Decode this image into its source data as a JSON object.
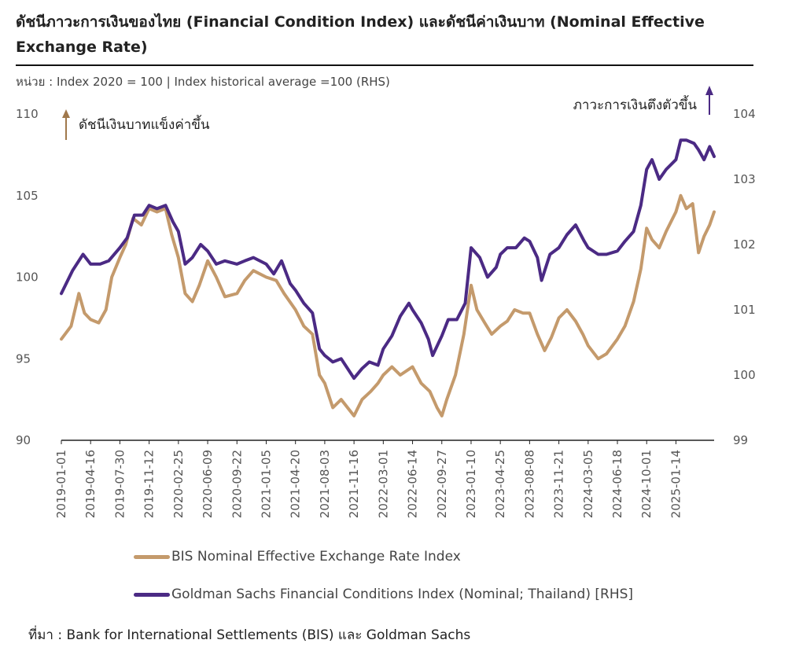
{
  "header": {
    "title": "ดัชนีภาวะการเงินของไทย (Financial Condition Index) และดัชนีค่าเงินบาท (Nominal Effective Exchange Rate)",
    "unit_note": "หน่วย : Index 2020 = 100 | Index historical average =100 (RHS)"
  },
  "annotations": {
    "left": "ดัชนีเงินบาทแข็งค่าขึ้น",
    "right": "ภาวะการเงินตึงตัวขึ้น"
  },
  "source": "ที่มา : Bank for International Settlements (BIS) และ Goldman Sachs",
  "colors": {
    "bis": "#C49A6C",
    "gs": "#4B2A84",
    "axis": "#222222",
    "arrow_left": "#A0784C",
    "arrow_right": "#4B2A84"
  },
  "chart_data": {
    "type": "line",
    "x_ticks": [
      "2019-01-01",
      "2019-04-16",
      "2019-07-30",
      "2019-11-12",
      "2020-02-25",
      "2020-06-09",
      "2020-09-22",
      "2021-01-05",
      "2021-04-20",
      "2021-08-03",
      "2021-11-16",
      "2022-03-01",
      "2022-06-14",
      "2022-09-27",
      "2023-01-10",
      "2023-04-25",
      "2023-08-08",
      "2023-11-21",
      "2024-03-05",
      "2024-06-18",
      "2024-10-01",
      "2025-01-14"
    ],
    "x_range": [
      "2019-01-01",
      "2025-05-31"
    ],
    "y_left": {
      "range": [
        90,
        110
      ],
      "ticks": [
        "90",
        "95",
        "100",
        "105",
        "110"
      ]
    },
    "y_right": {
      "range": [
        99,
        104
      ],
      "ticks": [
        "99",
        "100",
        "101",
        "102",
        "103",
        "104"
      ]
    },
    "series": [
      {
        "name": "BIS Nominal Effective Exchange Rate Index",
        "axis": "left",
        "points": [
          [
            "2019-01-01",
            96.2
          ],
          [
            "2019-02-05",
            97.0
          ],
          [
            "2019-03-05",
            99.0
          ],
          [
            "2019-03-25",
            97.8
          ],
          [
            "2019-04-16",
            97.4
          ],
          [
            "2019-05-15",
            97.2
          ],
          [
            "2019-06-10",
            98.0
          ],
          [
            "2019-07-01",
            100.0
          ],
          [
            "2019-07-30",
            101.2
          ],
          [
            "2019-08-20",
            102.0
          ],
          [
            "2019-09-15",
            103.6
          ],
          [
            "2019-10-15",
            103.2
          ],
          [
            "2019-11-12",
            104.2
          ],
          [
            "2019-12-10",
            104.0
          ],
          [
            "2020-01-10",
            104.2
          ],
          [
            "2020-02-01",
            102.6
          ],
          [
            "2020-02-25",
            101.2
          ],
          [
            "2020-03-20",
            99.0
          ],
          [
            "2020-04-15",
            98.5
          ],
          [
            "2020-05-10",
            99.5
          ],
          [
            "2020-06-09",
            101.0
          ],
          [
            "2020-07-10",
            100.0
          ],
          [
            "2020-08-10",
            98.8
          ],
          [
            "2020-09-22",
            99.0
          ],
          [
            "2020-10-20",
            99.8
          ],
          [
            "2020-11-20",
            100.4
          ],
          [
            "2021-01-05",
            100.0
          ],
          [
            "2021-02-10",
            99.8
          ],
          [
            "2021-03-10",
            99.0
          ],
          [
            "2021-04-20",
            98.0
          ],
          [
            "2021-05-20",
            97.0
          ],
          [
            "2021-06-20",
            96.5
          ],
          [
            "2021-07-15",
            94.0
          ],
          [
            "2021-08-03",
            93.5
          ],
          [
            "2021-09-01",
            92.0
          ],
          [
            "2021-10-01",
            92.5
          ],
          [
            "2021-11-16",
            91.5
          ],
          [
            "2021-12-15",
            92.5
          ],
          [
            "2022-01-15",
            93.0
          ],
          [
            "2022-02-10",
            93.5
          ],
          [
            "2022-03-01",
            94.0
          ],
          [
            "2022-04-01",
            94.5
          ],
          [
            "2022-05-01",
            94.0
          ],
          [
            "2022-06-14",
            94.5
          ],
          [
            "2022-07-15",
            93.5
          ],
          [
            "2022-08-15",
            93.0
          ],
          [
            "2022-09-10",
            92.0
          ],
          [
            "2022-09-27",
            91.5
          ],
          [
            "2022-10-15",
            92.5
          ],
          [
            "2022-11-15",
            94.0
          ],
          [
            "2022-12-15",
            96.5
          ],
          [
            "2023-01-10",
            99.5
          ],
          [
            "2023-01-31",
            98.0
          ],
          [
            "2023-02-28",
            97.2
          ],
          [
            "2023-03-25",
            96.5
          ],
          [
            "2023-04-25",
            97.0
          ],
          [
            "2023-05-20",
            97.3
          ],
          [
            "2023-06-15",
            98.0
          ],
          [
            "2023-07-15",
            97.8
          ],
          [
            "2023-08-08",
            97.8
          ],
          [
            "2023-09-05",
            96.5
          ],
          [
            "2023-10-01",
            95.5
          ],
          [
            "2023-10-25",
            96.3
          ],
          [
            "2023-11-21",
            97.5
          ],
          [
            "2023-12-20",
            98.0
          ],
          [
            "2024-01-20",
            97.3
          ],
          [
            "2024-02-15",
            96.5
          ],
          [
            "2024-03-05",
            95.8
          ],
          [
            "2024-04-10",
            95.0
          ],
          [
            "2024-05-10",
            95.3
          ],
          [
            "2024-06-18",
            96.2
          ],
          [
            "2024-07-15",
            97.0
          ],
          [
            "2024-08-15",
            98.5
          ],
          [
            "2024-09-10",
            100.5
          ],
          [
            "2024-10-01",
            103.0
          ],
          [
            "2024-10-20",
            102.3
          ],
          [
            "2024-11-15",
            101.8
          ],
          [
            "2024-12-10",
            102.8
          ],
          [
            "2025-01-14",
            104.0
          ],
          [
            "2025-01-31",
            105.0
          ],
          [
            "2025-02-20",
            104.2
          ],
          [
            "2025-03-15",
            104.5
          ],
          [
            "2025-04-05",
            101.5
          ],
          [
            "2025-04-25",
            102.5
          ],
          [
            "2025-05-15",
            103.2
          ],
          [
            "2025-05-31",
            104.0
          ]
        ]
      },
      {
        "name": "Goldman Sachs Financial Conditions Index (Nominal; Thailand) [RHS]",
        "axis": "right",
        "points": [
          [
            "2019-01-01",
            101.25
          ],
          [
            "2019-02-10",
            101.6
          ],
          [
            "2019-03-20",
            101.85
          ],
          [
            "2019-04-16",
            101.7
          ],
          [
            "2019-05-20",
            101.7
          ],
          [
            "2019-06-20",
            101.75
          ],
          [
            "2019-07-30",
            101.95
          ],
          [
            "2019-08-25",
            102.1
          ],
          [
            "2019-09-20",
            102.45
          ],
          [
            "2019-10-20",
            102.45
          ],
          [
            "2019-11-12",
            102.6
          ],
          [
            "2019-12-10",
            102.55
          ],
          [
            "2020-01-10",
            102.6
          ],
          [
            "2020-02-05",
            102.35
          ],
          [
            "2020-02-25",
            102.2
          ],
          [
            "2020-03-20",
            101.7
          ],
          [
            "2020-04-15",
            101.8
          ],
          [
            "2020-05-15",
            102.0
          ],
          [
            "2020-06-09",
            101.9
          ],
          [
            "2020-07-10",
            101.7
          ],
          [
            "2020-08-10",
            101.75
          ],
          [
            "2020-09-22",
            101.7
          ],
          [
            "2020-10-20",
            101.75
          ],
          [
            "2020-11-20",
            101.8
          ],
          [
            "2021-01-05",
            101.7
          ],
          [
            "2021-02-01",
            101.55
          ],
          [
            "2021-03-01",
            101.75
          ],
          [
            "2021-04-01",
            101.4
          ],
          [
            "2021-04-20",
            101.3
          ],
          [
            "2021-05-20",
            101.1
          ],
          [
            "2021-06-20",
            100.95
          ],
          [
            "2021-07-15",
            100.4
          ],
          [
            "2021-08-03",
            100.3
          ],
          [
            "2021-09-01",
            100.2
          ],
          [
            "2021-10-01",
            100.25
          ],
          [
            "2021-11-16",
            99.95
          ],
          [
            "2021-12-15",
            100.1
          ],
          [
            "2022-01-10",
            100.2
          ],
          [
            "2022-02-10",
            100.15
          ],
          [
            "2022-03-01",
            100.4
          ],
          [
            "2022-04-01",
            100.6
          ],
          [
            "2022-05-01",
            100.9
          ],
          [
            "2022-06-01",
            101.1
          ],
          [
            "2022-06-14",
            101.0
          ],
          [
            "2022-07-15",
            100.8
          ],
          [
            "2022-08-10",
            100.55
          ],
          [
            "2022-08-25",
            100.3
          ],
          [
            "2022-09-27",
            100.6
          ],
          [
            "2022-10-20",
            100.85
          ],
          [
            "2022-11-20",
            100.85
          ],
          [
            "2022-12-20",
            101.1
          ],
          [
            "2023-01-10",
            101.95
          ],
          [
            "2023-02-10",
            101.8
          ],
          [
            "2023-03-10",
            101.5
          ],
          [
            "2023-04-10",
            101.65
          ],
          [
            "2023-04-25",
            101.85
          ],
          [
            "2023-05-20",
            101.95
          ],
          [
            "2023-06-20",
            101.95
          ],
          [
            "2023-07-20",
            102.1
          ],
          [
            "2023-08-08",
            102.05
          ],
          [
            "2023-09-05",
            101.8
          ],
          [
            "2023-09-20",
            101.45
          ],
          [
            "2023-10-20",
            101.85
          ],
          [
            "2023-11-21",
            101.95
          ],
          [
            "2023-12-20",
            102.15
          ],
          [
            "2024-01-20",
            102.3
          ],
          [
            "2024-02-20",
            102.05
          ],
          [
            "2024-03-05",
            101.95
          ],
          [
            "2024-04-10",
            101.85
          ],
          [
            "2024-05-10",
            101.85
          ],
          [
            "2024-06-18",
            101.9
          ],
          [
            "2024-07-15",
            102.05
          ],
          [
            "2024-08-15",
            102.2
          ],
          [
            "2024-09-10",
            102.6
          ],
          [
            "2024-10-01",
            103.15
          ],
          [
            "2024-10-20",
            103.3
          ],
          [
            "2024-11-15",
            103.0
          ],
          [
            "2024-12-10",
            103.15
          ],
          [
            "2025-01-14",
            103.3
          ],
          [
            "2025-01-31",
            103.6
          ],
          [
            "2025-02-20",
            103.6
          ],
          [
            "2025-03-20",
            103.55
          ],
          [
            "2025-04-05",
            103.45
          ],
          [
            "2025-04-25",
            103.3
          ],
          [
            "2025-05-15",
            103.5
          ],
          [
            "2025-05-31",
            103.35
          ]
        ]
      }
    ]
  }
}
